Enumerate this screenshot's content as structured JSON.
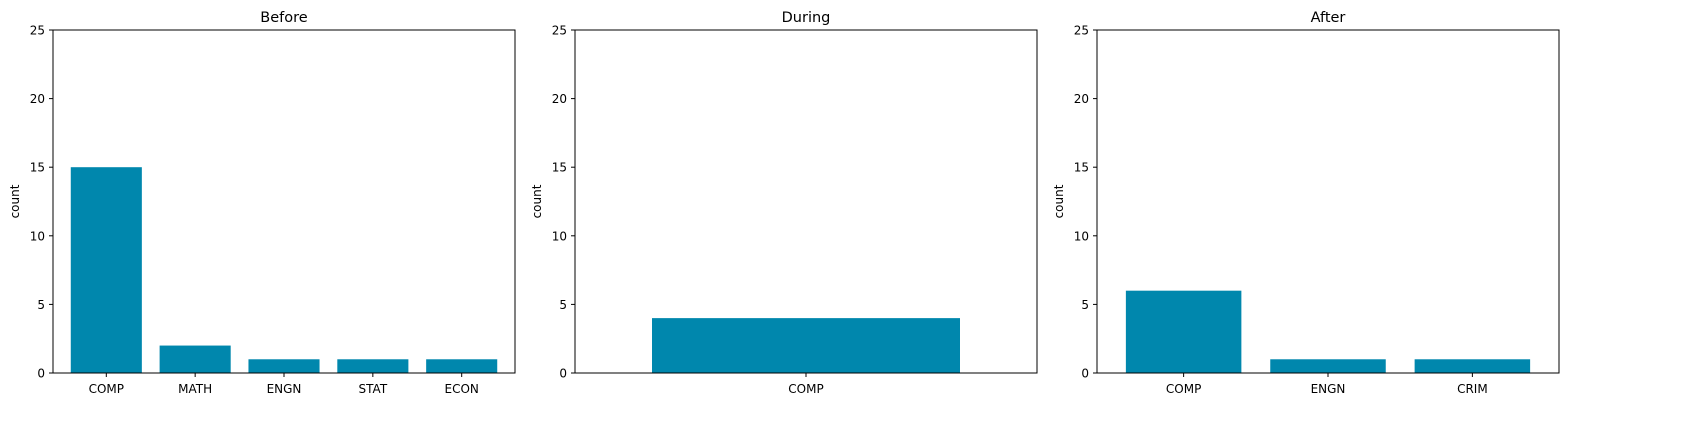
{
  "chart_data": [
    {
      "type": "bar",
      "title": "Before",
      "xlabel": "",
      "ylabel": "count",
      "ylim": [
        0,
        25
      ],
      "yticks": [
        0,
        5,
        10,
        15,
        20,
        25
      ],
      "categories": [
        "COMP",
        "MATH",
        "ENGN",
        "STAT",
        "ECON"
      ],
      "values": [
        15,
        2,
        1,
        1,
        1
      ],
      "color": "#0087ad",
      "grid": false
    },
    {
      "type": "bar",
      "title": "During",
      "xlabel": "",
      "ylabel": "count",
      "ylim": [
        0,
        25
      ],
      "yticks": [
        0,
        5,
        10,
        15,
        20,
        25
      ],
      "categories": [
        "COMP"
      ],
      "values": [
        4
      ],
      "color": "#0087ad",
      "grid": false
    },
    {
      "type": "bar",
      "title": "After",
      "xlabel": "",
      "ylabel": "count",
      "ylim": [
        0,
        25
      ],
      "yticks": [
        0,
        5,
        10,
        15,
        20,
        25
      ],
      "categories": [
        "COMP",
        "ENGN",
        "CRIM"
      ],
      "values": [
        6,
        1,
        1
      ],
      "color": "#0087ad",
      "grid": false
    }
  ]
}
